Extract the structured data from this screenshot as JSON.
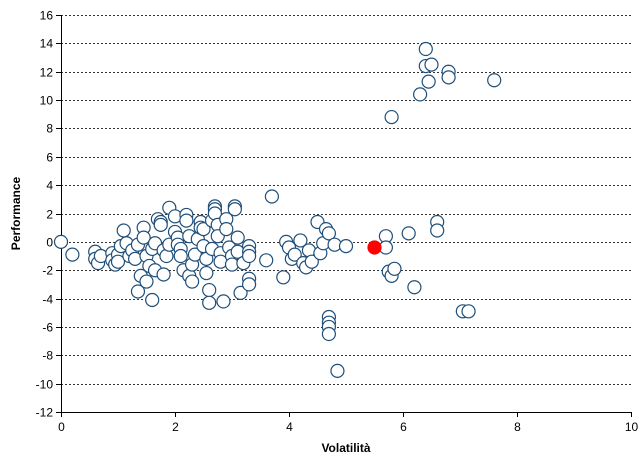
{
  "chart_data": {
    "type": "scatter",
    "xlabel": "Volatilità",
    "ylabel": "Performance",
    "xlim": [
      0,
      10
    ],
    "ylim": [
      -12,
      16
    ],
    "x_ticks": [
      0,
      2,
      4,
      6,
      8,
      10
    ],
    "y_ticks": [
      -12,
      -10,
      -8,
      -6,
      -4,
      -2,
      0,
      2,
      4,
      6,
      8,
      10,
      12,
      14,
      16
    ],
    "grid": "horizontal-dotted",
    "colors": {
      "point_fill": "#ffffff",
      "point_stroke": "#1f4e79",
      "highlight_fill": "#ff0000",
      "grid": "#333333",
      "axis": "#000000"
    },
    "series": [
      {
        "points": [
          [
            0.0,
            0.0
          ],
          [
            0.2,
            -0.9
          ],
          [
            0.6,
            -0.7
          ],
          [
            0.6,
            -1.2
          ],
          [
            0.65,
            -1.5
          ],
          [
            0.7,
            -1.0
          ],
          [
            0.9,
            -0.8
          ],
          [
            0.9,
            -1.3
          ],
          [
            0.95,
            -1.6
          ],
          [
            1.0,
            -0.9
          ],
          [
            1.0,
            -1.4
          ],
          [
            1.05,
            -0.3
          ],
          [
            1.1,
            0.8
          ],
          [
            1.15,
            -0.1
          ],
          [
            1.2,
            -1.0
          ],
          [
            1.25,
            -0.6
          ],
          [
            1.3,
            -1.2
          ],
          [
            1.35,
            -0.2
          ],
          [
            1.35,
            -3.5
          ],
          [
            1.4,
            -2.4
          ],
          [
            1.45,
            1.0
          ],
          [
            1.45,
            0.3
          ],
          [
            1.5,
            -2.8
          ],
          [
            1.5,
            -1.0
          ],
          [
            1.55,
            -1.7
          ],
          [
            1.6,
            -0.5
          ],
          [
            1.6,
            -4.1
          ],
          [
            1.65,
            -2.0
          ],
          [
            1.65,
            -0.1
          ],
          [
            1.7,
            1.6
          ],
          [
            1.75,
            1.4
          ],
          [
            1.75,
            1.2
          ],
          [
            1.8,
            -0.6
          ],
          [
            1.8,
            -2.3
          ],
          [
            1.85,
            -1.0
          ],
          [
            1.9,
            -0.2
          ],
          [
            1.9,
            2.4
          ],
          [
            2.0,
            1.8
          ],
          [
            2.0,
            0.7
          ],
          [
            2.05,
            0.3
          ],
          [
            2.05,
            -0.2
          ],
          [
            2.1,
            -0.5
          ],
          [
            2.1,
            -1.0
          ],
          [
            2.15,
            -2.0
          ],
          [
            2.2,
            1.9
          ],
          [
            2.2,
            1.5
          ],
          [
            2.25,
            0.4
          ],
          [
            2.25,
            -2.4
          ],
          [
            2.3,
            -2.8
          ],
          [
            2.3,
            -1.6
          ],
          [
            2.35,
            -0.9
          ],
          [
            2.4,
            0.2
          ],
          [
            2.45,
            1.4
          ],
          [
            2.45,
            1.0
          ],
          [
            2.5,
            0.9
          ],
          [
            2.5,
            -0.3
          ],
          [
            2.55,
            -1.2
          ],
          [
            2.55,
            -2.2
          ],
          [
            2.6,
            -3.4
          ],
          [
            2.6,
            -4.3
          ],
          [
            2.65,
            1.5
          ],
          [
            2.65,
            -0.5
          ],
          [
            2.7,
            2.5
          ],
          [
            2.7,
            2.3
          ],
          [
            2.7,
            2.0
          ],
          [
            2.75,
            1.2
          ],
          [
            2.75,
            0.4
          ],
          [
            2.8,
            -0.8
          ],
          [
            2.8,
            -1.4
          ],
          [
            2.85,
            -4.2
          ],
          [
            2.9,
            1.6
          ],
          [
            2.9,
            0.9
          ],
          [
            2.95,
            -0.4
          ],
          [
            3.0,
            -1.0
          ],
          [
            3.0,
            -1.6
          ],
          [
            3.05,
            2.5
          ],
          [
            3.05,
            2.3
          ],
          [
            3.1,
            0.3
          ],
          [
            3.1,
            -0.7
          ],
          [
            3.15,
            -3.6
          ],
          [
            3.2,
            -1.5
          ],
          [
            3.3,
            -0.3
          ],
          [
            3.3,
            -0.7
          ],
          [
            3.3,
            -1.0
          ],
          [
            3.3,
            -2.6
          ],
          [
            3.3,
            -3.0
          ],
          [
            3.6,
            -1.3
          ],
          [
            3.7,
            3.2
          ],
          [
            3.9,
            -2.5
          ],
          [
            3.95,
            0.0
          ],
          [
            4.0,
            -0.4
          ],
          [
            4.05,
            -1.2
          ],
          [
            4.1,
            -0.9
          ],
          [
            4.2,
            0.1
          ],
          [
            4.25,
            -1.5
          ],
          [
            4.3,
            -1.8
          ],
          [
            4.35,
            -0.6
          ],
          [
            4.4,
            -1.4
          ],
          [
            4.5,
            1.4
          ],
          [
            4.55,
            -0.8
          ],
          [
            4.6,
            -0.1
          ],
          [
            4.65,
            0.9
          ],
          [
            4.7,
            0.6
          ],
          [
            4.7,
            -5.3
          ],
          [
            4.7,
            -5.7
          ],
          [
            4.7,
            -6.0
          ],
          [
            4.7,
            -6.5
          ],
          [
            4.8,
            -0.2
          ],
          [
            4.85,
            -9.1
          ],
          [
            5.0,
            -0.3
          ],
          [
            5.7,
            0.4
          ],
          [
            5.7,
            -0.4
          ],
          [
            5.75,
            -2.1
          ],
          [
            5.8,
            -2.4
          ],
          [
            5.8,
            8.8
          ],
          [
            5.85,
            -1.9
          ],
          [
            6.1,
            0.6
          ],
          [
            6.2,
            -3.2
          ],
          [
            6.3,
            10.4
          ],
          [
            6.4,
            13.6
          ],
          [
            6.4,
            12.4
          ],
          [
            6.45,
            11.3
          ],
          [
            6.5,
            12.5
          ],
          [
            6.6,
            1.4
          ],
          [
            6.6,
            0.8
          ],
          [
            6.8,
            12.0
          ],
          [
            6.8,
            11.6
          ],
          [
            7.05,
            -4.9
          ],
          [
            7.15,
            -4.9
          ],
          [
            7.6,
            11.4
          ]
        ]
      },
      {
        "highlight": true,
        "points": [
          [
            5.5,
            -0.4
          ]
        ]
      }
    ]
  }
}
